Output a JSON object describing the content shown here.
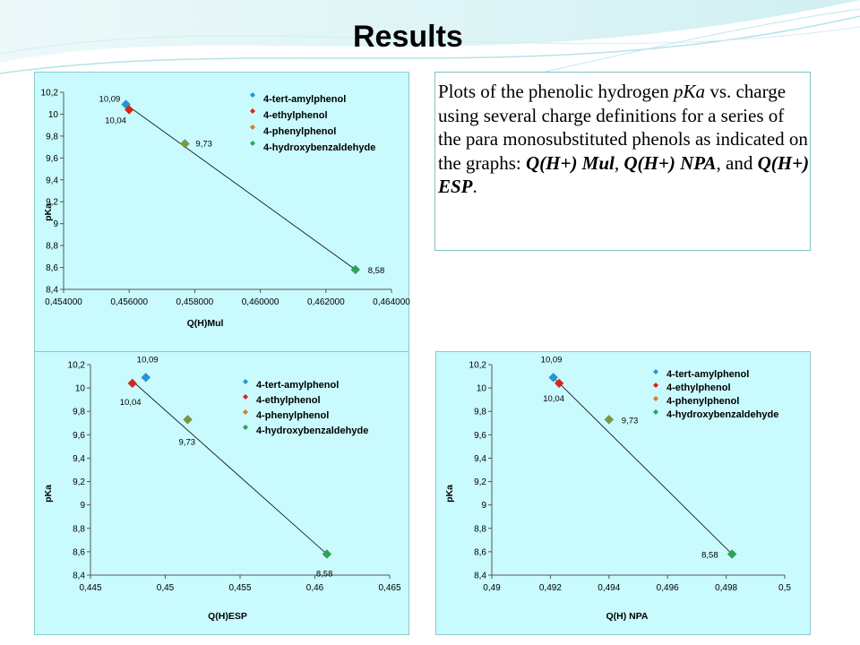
{
  "slide": {
    "title": "Results",
    "description": {
      "p1": "Plots of the phenolic hydrogen ",
      "pka": "pKa",
      "p2": " vs. charge using several charge definitions for a series of the para monosubstituted phenols as indicated on the graphs: ",
      "m1": "Q(H+) Mul",
      "sep1": ", ",
      "m2": "Q(H+) NPA",
      "sep2": ", and ",
      "m3": "Q(H+) ESP",
      "end": "."
    }
  },
  "colors": {
    "panel_bg": "#c9fafd",
    "amyl": "#2196d8",
    "ethyl": "#e0201b",
    "phenyl": "#e07a1e",
    "hydroxy": "#2aa654",
    "marker_mixed": "#7a9a3c"
  },
  "chart_data": [
    {
      "id": "mul",
      "type": "scatter",
      "xlabel": "Q(H)Mul",
      "ylabel": "pKa",
      "xlim": [
        0.454,
        0.464
      ],
      "ylim": [
        8.4,
        10.2
      ],
      "xticks": [
        "0,454000",
        "0,456000",
        "0,458000",
        "0,460000",
        "0,462000",
        "0,464000"
      ],
      "yticks": [
        "8,4",
        "8,6",
        "8,8",
        "9",
        "9,2",
        "9,4",
        "9,6",
        "9,8",
        "10",
        "10,2"
      ],
      "series": [
        {
          "name": "4-tert-amylphenol",
          "color": "#2196d8",
          "x": 0.4559,
          "y": 10.09,
          "label": "10,09"
        },
        {
          "name": "4-ethylphenol",
          "color": "#e0201b",
          "x": 0.456,
          "y": 10.04,
          "label": "10,04"
        },
        {
          "name": "4-phenylphenol",
          "color": "#7a9a3c",
          "x": 0.4577,
          "y": 9.73,
          "label": "9,73"
        },
        {
          "name": "4-hydroxybenzaldehyde",
          "color": "#2aa654",
          "x": 0.4629,
          "y": 8.58,
          "label": "8,58"
        }
      ],
      "trendline": [
        [
          0.4559,
          10.09
        ],
        [
          0.4629,
          8.58
        ]
      ]
    },
    {
      "id": "esp",
      "type": "scatter",
      "xlabel": "Q(H)ESP",
      "ylabel": "pKa",
      "xlim": [
        0.445,
        0.465
      ],
      "ylim": [
        8.4,
        10.2
      ],
      "xticks": [
        "0,445",
        "0,45",
        "0,455",
        "0,46",
        "0,465"
      ],
      "yticks": [
        "8,4",
        "8,6",
        "8,8",
        "9",
        "9,2",
        "9,4",
        "9,6",
        "9,8",
        "10",
        "10,2"
      ],
      "series": [
        {
          "name": "4-tert-amylphenol",
          "color": "#2196d8",
          "x": 0.4487,
          "y": 10.09,
          "label": "10,09"
        },
        {
          "name": "4-ethylphenol",
          "color": "#e0201b",
          "x": 0.4478,
          "y": 10.04,
          "label": "10,04"
        },
        {
          "name": "4-phenylphenol",
          "color": "#7a9a3c",
          "x": 0.4515,
          "y": 9.73,
          "label": "9,73"
        },
        {
          "name": "4-hydroxybenzaldehyde",
          "color": "#2aa654",
          "x": 0.4608,
          "y": 8.58,
          "label": "8,58"
        }
      ],
      "trendline": [
        [
          0.4478,
          10.06
        ],
        [
          0.4608,
          8.58
        ]
      ]
    },
    {
      "id": "npa",
      "type": "scatter",
      "xlabel": "Q(H) NPA",
      "ylabel": "pKa",
      "xlim": [
        0.49,
        0.5
      ],
      "ylim": [
        8.4,
        10.2
      ],
      "xticks": [
        "0,49",
        "0,492",
        "0,494",
        "0,496",
        "0,498",
        "0,5"
      ],
      "yticks": [
        "8,4",
        "8,6",
        "8,8",
        "9",
        "9,2",
        "9,4",
        "9,6",
        "9,8",
        "10",
        "10,2"
      ],
      "series": [
        {
          "name": "4-tert-amylphenol",
          "color": "#2196d8",
          "x": 0.4921,
          "y": 10.09,
          "label": "10,09"
        },
        {
          "name": "4-ethylphenol",
          "color": "#e0201b",
          "x": 0.4923,
          "y": 10.04,
          "label": "10,04"
        },
        {
          "name": "4-phenylphenol",
          "color": "#7a9a3c",
          "x": 0.494,
          "y": 9.73,
          "label": "9,73"
        },
        {
          "name": "4-hydroxybenzaldehyde",
          "color": "#2aa654",
          "x": 0.4982,
          "y": 8.58,
          "label": "8,58"
        }
      ],
      "trendline": [
        [
          0.4921,
          10.09
        ],
        [
          0.4982,
          8.58
        ]
      ]
    }
  ]
}
